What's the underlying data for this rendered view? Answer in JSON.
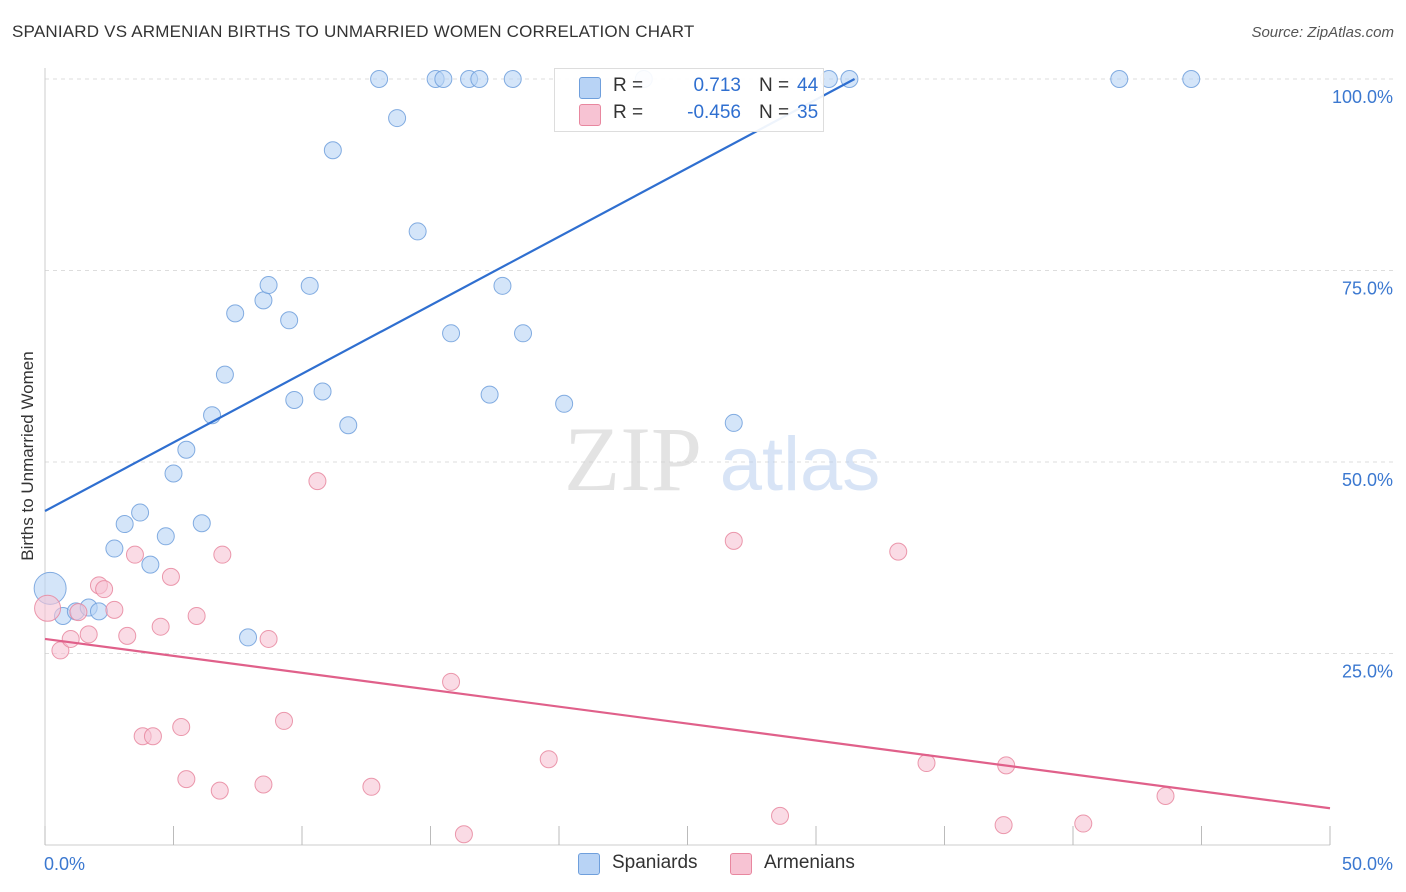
{
  "header": {
    "title": "SPANIARD VS ARMENIAN BIRTHS TO UNMARRIED WOMEN CORRELATION CHART",
    "source": "Source: ZipAtlas.com"
  },
  "legend": {
    "items": [
      {
        "r_label": "R =",
        "r_value": "0.713",
        "n_label": "N =",
        "n_value": "44"
      },
      {
        "r_label": "R =",
        "r_value": "-0.456",
        "n_label": "N =",
        "n_value": "35"
      }
    ]
  },
  "bottom_legend": [
    "Spaniards",
    "Armenians"
  ],
  "watermark": {
    "part1": "ZIP",
    "part2": "atlas"
  },
  "colors": {
    "spaniards_fill": "#b8d3f5",
    "spaniards_stroke": "#6f9fdc",
    "spaniards_line": "#2f6fd0",
    "armenians_fill": "#f7c3d3",
    "armenians_stroke": "#e8879f",
    "armenians_line": "#e0608a",
    "tick_label": "#3b78d0",
    "grid": "#dddddd"
  },
  "chart_data": {
    "type": "scatter",
    "title": "SPANIARD VS ARMENIAN BIRTHS TO UNMARRIED WOMEN CORRELATION CHART",
    "xlabel": "",
    "ylabel": "Births to Unmarried Women",
    "xlim": [
      0,
      50
    ],
    "ylim": [
      0,
      100
    ],
    "x_tick_labels": [
      "0.0%",
      "50.0%"
    ],
    "y_tick_labels": [
      "100.0%",
      "75.0%",
      "50.0%",
      "25.0%"
    ],
    "y_ticks": [
      100,
      75,
      50,
      25
    ],
    "grid": true,
    "legend_position": "top-center",
    "series": [
      {
        "name": "Spaniards",
        "r": 0.713,
        "n": 44,
        "trend": {
          "x": [
            0,
            31.5
          ],
          "y": [
            43.6,
            100
          ]
        },
        "points": [
          [
            0.2,
            33.5
          ],
          [
            0.7,
            29.9
          ],
          [
            1.2,
            30.5
          ],
          [
            1.7,
            31.0
          ],
          [
            2.1,
            30.5
          ],
          [
            2.7,
            38.7
          ],
          [
            3.1,
            41.9
          ],
          [
            3.7,
            43.4
          ],
          [
            4.1,
            36.6
          ],
          [
            4.7,
            40.3
          ],
          [
            5.0,
            48.5
          ],
          [
            5.5,
            51.6
          ],
          [
            6.1,
            42.0
          ],
          [
            6.5,
            56.1
          ],
          [
            7.0,
            61.4
          ],
          [
            7.4,
            69.4
          ],
          [
            7.9,
            27.1
          ],
          [
            8.5,
            71.1
          ],
          [
            8.7,
            73.1
          ],
          [
            9.5,
            68.5
          ],
          [
            9.7,
            58.1
          ],
          [
            10.3,
            73.0
          ],
          [
            10.8,
            59.2
          ],
          [
            11.2,
            90.7
          ],
          [
            11.8,
            54.8
          ],
          [
            13.0,
            100.0
          ],
          [
            13.7,
            94.9
          ],
          [
            14.5,
            80.1
          ],
          [
            15.2,
            100.0
          ],
          [
            15.5,
            100.0
          ],
          [
            15.8,
            66.8
          ],
          [
            16.5,
            100.0
          ],
          [
            16.9,
            100.0
          ],
          [
            17.3,
            58.8
          ],
          [
            17.8,
            73.0
          ],
          [
            18.2,
            100.0
          ],
          [
            18.6,
            66.8
          ],
          [
            20.2,
            57.6
          ],
          [
            23.3,
            100.0
          ],
          [
            26.8,
            55.1
          ],
          [
            30.5,
            100.0
          ],
          [
            31.3,
            100.0
          ],
          [
            41.8,
            100.0
          ],
          [
            44.6,
            100.0
          ]
        ]
      },
      {
        "name": "Armenians",
        "r": -0.456,
        "n": 35,
        "trend": {
          "x": [
            0,
            50
          ],
          "y": [
            26.9,
            4.8
          ]
        },
        "points": [
          [
            0.1,
            30.9
          ],
          [
            0.6,
            25.4
          ],
          [
            1.0,
            26.9
          ],
          [
            1.3,
            30.4
          ],
          [
            1.7,
            27.5
          ],
          [
            2.1,
            33.9
          ],
          [
            2.3,
            33.4
          ],
          [
            2.7,
            30.7
          ],
          [
            3.2,
            27.3
          ],
          [
            3.5,
            37.9
          ],
          [
            3.8,
            14.2
          ],
          [
            4.2,
            14.2
          ],
          [
            4.5,
            28.5
          ],
          [
            4.9,
            35.0
          ],
          [
            5.3,
            15.4
          ],
          [
            5.5,
            8.6
          ],
          [
            5.9,
            29.9
          ],
          [
            6.8,
            7.1
          ],
          [
            6.9,
            37.9
          ],
          [
            8.5,
            7.9
          ],
          [
            8.7,
            26.9
          ],
          [
            9.3,
            16.2
          ],
          [
            10.6,
            47.5
          ],
          [
            12.7,
            7.6
          ],
          [
            15.8,
            21.3
          ],
          [
            16.3,
            1.4
          ],
          [
            19.6,
            11.2
          ],
          [
            26.8,
            39.7
          ],
          [
            28.6,
            3.8
          ],
          [
            33.2,
            38.3
          ],
          [
            34.3,
            10.7
          ],
          [
            37.3,
            2.6
          ],
          [
            37.4,
            10.4
          ],
          [
            40.4,
            2.8
          ],
          [
            43.6,
            6.4
          ]
        ]
      }
    ]
  }
}
